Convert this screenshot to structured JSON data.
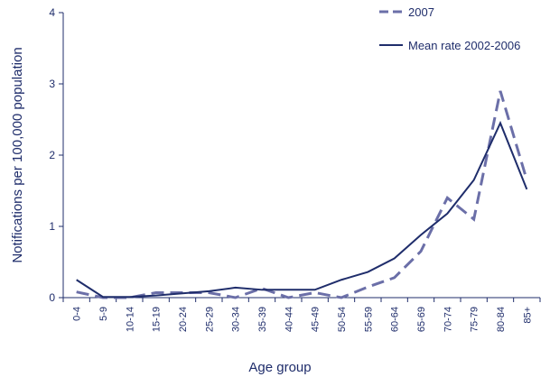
{
  "chart_data": {
    "type": "line",
    "x_label": "Age group",
    "y_label": "Notifications per 100,000 population",
    "categories": [
      "0-4",
      "5-9",
      "10-14",
      "15-19",
      "20-24",
      "25-29",
      "30-34",
      "35-39",
      "40-44",
      "45-49",
      "50-54",
      "55-59",
      "60-64",
      "65-69",
      "70-74",
      "75-79",
      "80-84",
      "85+"
    ],
    "series": [
      {
        "name": "2007",
        "color": "#6b6fa8",
        "dashed": true,
        "values": [
          0.08,
          0.0,
          0.0,
          0.07,
          0.07,
          0.07,
          0.0,
          0.13,
          0.0,
          0.07,
          0.0,
          0.15,
          0.28,
          0.65,
          1.4,
          1.1,
          2.9,
          1.65
        ]
      },
      {
        "name": "Mean rate 2002-2006",
        "color": "#1f2d6b",
        "dashed": false,
        "values": [
          0.25,
          0.01,
          0.01,
          0.03,
          0.06,
          0.09,
          0.14,
          0.11,
          0.11,
          0.11,
          0.25,
          0.36,
          0.55,
          0.88,
          1.18,
          1.65,
          2.45,
          1.52
        ]
      }
    ],
    "ylim": [
      0,
      4
    ],
    "yticks": [
      0,
      1,
      2,
      3,
      4
    ],
    "grid": false
  }
}
